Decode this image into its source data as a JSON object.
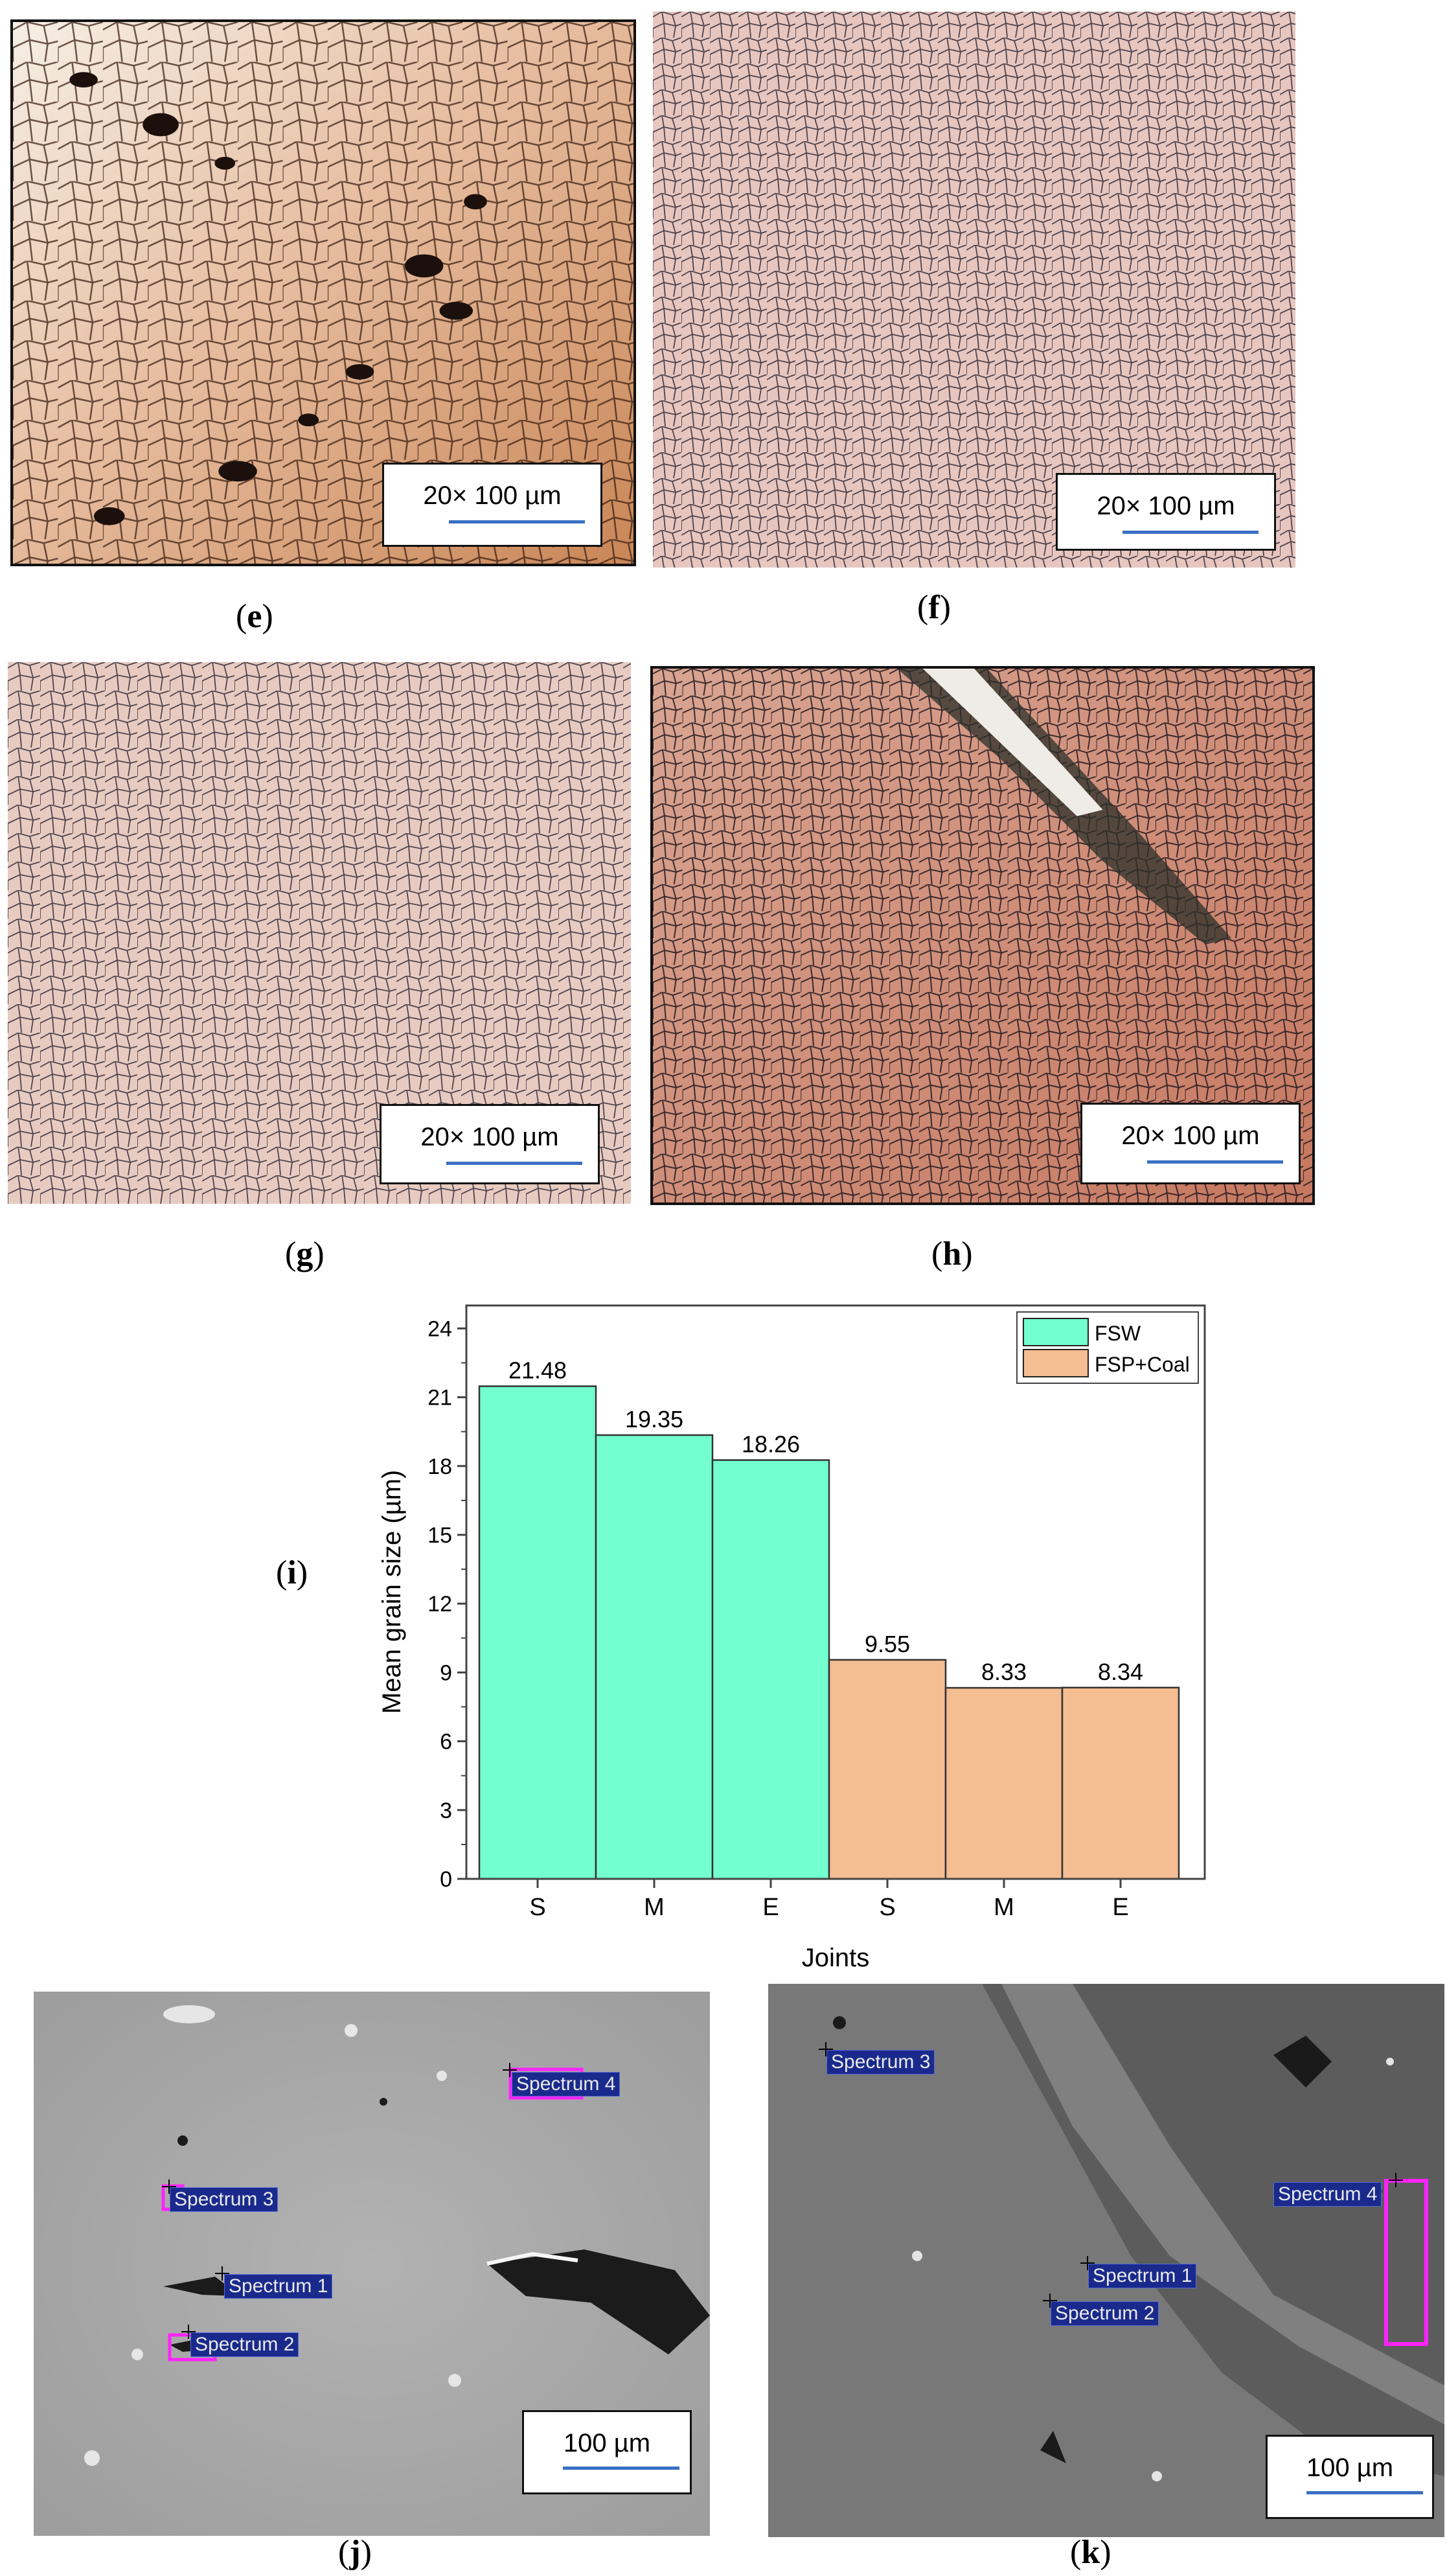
{
  "panels": {
    "e": {
      "label_open": "(",
      "letter": "e",
      "label_close": ")",
      "scale_text": "20× 100 µm"
    },
    "f": {
      "label_open": "(",
      "letter": "f",
      "label_close": ")",
      "scale_text": "20× 100 µm"
    },
    "g": {
      "label_open": "(",
      "letter": "g",
      "label_close": ")",
      "scale_text": "20× 100 µm"
    },
    "h": {
      "label_open": "(",
      "letter": "h",
      "label_close": ")",
      "scale_text": "20× 100 µm"
    },
    "i": {
      "label_open": "(",
      "letter": "i",
      "label_close": ")"
    },
    "j": {
      "label_open": "(",
      "letter": "j",
      "label_close": ")",
      "scale_text": "100 µm",
      "spectra": [
        "Spectrum 4",
        "Spectrum 3",
        "Spectrum 1",
        "Spectrum 2"
      ]
    },
    "k": {
      "label_open": "(",
      "letter": "k",
      "label_close": ")",
      "scale_text": "100 µm",
      "spectra": [
        "Spectrum 3",
        "Spectrum 4",
        "Spectrum 1",
        "Spectrum 2"
      ]
    }
  },
  "colors": {
    "fsw": "#73ffcf",
    "fsp_coal": "#f4bd92",
    "scale_bar": "#3a70c4",
    "spectrum_label_bg": "#1a2a8c",
    "spectrum_box": "#ff22ff"
  },
  "chart_data": {
    "type": "bar",
    "categories": [
      "S",
      "M",
      "E",
      "S",
      "M",
      "E"
    ],
    "series": [
      {
        "name": "FSW",
        "values": [
          21.48,
          19.35,
          18.26,
          null,
          null,
          null
        ]
      },
      {
        "name": "FSP+Coal",
        "values": [
          null,
          null,
          null,
          9.55,
          8.33,
          8.34
        ]
      }
    ],
    "data_labels": [
      "21.48",
      "19.35",
      "18.26",
      "9.55",
      "8.33",
      "8.34"
    ],
    "xlabel": "Joints",
    "ylabel": "Mean grain size (µm)",
    "ylim": [
      0,
      25
    ],
    "yticks": [
      0,
      3,
      6,
      9,
      12,
      15,
      18,
      21,
      24
    ],
    "legend_position": "top-right",
    "grid": false
  }
}
